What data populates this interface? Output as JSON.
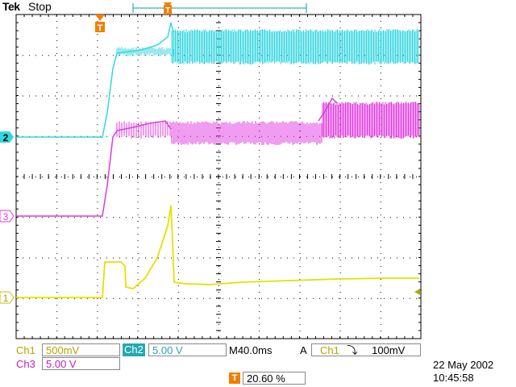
{
  "header": {
    "brand": "Tek",
    "acq_state": "Stop"
  },
  "trigger_marker": "T",
  "channels": [
    {
      "id": "ch2",
      "marker": "2",
      "color": "#33d6e0",
      "name": "Ch2",
      "scale": "5.00 V"
    },
    {
      "id": "ch3",
      "marker": "3",
      "color": "#e038e0",
      "name": "Ch3",
      "scale": "5.00 V"
    },
    {
      "id": "ch1",
      "marker": "1",
      "color": "#e6e000",
      "name": "Ch1",
      "scale": "500mV"
    }
  ],
  "status": {
    "ch1_label": "Ch1",
    "ch1_scale": "500mV",
    "ch2_label": "Ch2",
    "ch2_scale": "5.00 V",
    "ch3_label": "Ch3",
    "ch3_scale": "5.00 V",
    "timebase": "M40.0ms",
    "trigger_mode": "A",
    "trigger_source": "Ch1",
    "trigger_slope": "⤵",
    "trigger_level": "100mV",
    "trigger_pos_marker": "T",
    "trigger_position": "20.60 %",
    "date": "22 May 2002",
    "time": "10:45:58"
  },
  "colors": {
    "grid": "#000000",
    "ch1": "#e6e000",
    "ch2": "#33d6e0",
    "ch3": "#e038e0",
    "trigger": "#f08000"
  }
}
